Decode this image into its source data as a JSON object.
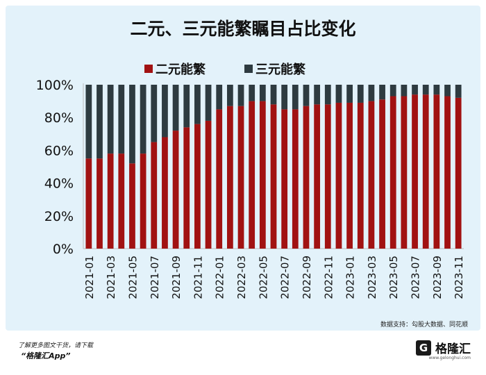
{
  "title": "二元、三元能繁瞩目占比变化",
  "legend": [
    {
      "label": "二元能繁",
      "color": "#a11212"
    },
    {
      "label": "三元能繁",
      "color": "#2e3b40"
    }
  ],
  "source": "数据支持：勾股大数据、同花顺",
  "footer": {
    "line1": "了解更多图文干货，请下载",
    "line2": "“格隆汇App”"
  },
  "brand": {
    "mark": "G",
    "name": "格隆汇",
    "url": "www.gelonghui.com"
  },
  "chart_data": {
    "type": "bar",
    "stacked": true,
    "title": "二元、三元能繁瞩目占比变化",
    "xlabel": "",
    "ylabel": "",
    "ylim": [
      0,
      100
    ],
    "yticks": [
      "0%",
      "20%",
      "40%",
      "60%",
      "80%",
      "100%"
    ],
    "legend_position": "top",
    "grid": false,
    "categories": [
      "2021-01",
      "2021-02",
      "2021-03",
      "2021-04",
      "2021-05",
      "2021-06",
      "2021-07",
      "2021-08",
      "2021-09",
      "2021-10",
      "2021-11",
      "2021-12",
      "2022-01",
      "2022-02",
      "2022-03",
      "2022-04",
      "2022-05",
      "2022-06",
      "2022-07",
      "2022-08",
      "2022-09",
      "2022-10",
      "2022-11",
      "2022-12",
      "2023-01",
      "2023-02",
      "2023-03",
      "2023-04",
      "2023-05",
      "2023-06",
      "2023-07",
      "2023-08",
      "2023-09",
      "2023-10",
      "2023-11"
    ],
    "xtick_labels": [
      "2021-01",
      "2021-03",
      "2021-05",
      "2021-07",
      "2021-09",
      "2021-11",
      "2022-01",
      "2022-03",
      "2022-05",
      "2022-07",
      "2022-09",
      "2022-11",
      "2023-01",
      "2023-03",
      "2023-05",
      "2023-07",
      "2023-09",
      "2023-11"
    ],
    "series": [
      {
        "name": "二元能繁",
        "color": "#a11212",
        "values": [
          55,
          55,
          58,
          58,
          52,
          58,
          65,
          68,
          72,
          74,
          76,
          78,
          85,
          87,
          87,
          90,
          90,
          88,
          85,
          85,
          87,
          88,
          88,
          89,
          89,
          89,
          90,
          91,
          93,
          93,
          94,
          94,
          94,
          93,
          92
        ]
      },
      {
        "name": "三元能繁",
        "color": "#2e3b40",
        "values": [
          45,
          45,
          42,
          42,
          48,
          42,
          35,
          32,
          28,
          26,
          24,
          22,
          15,
          13,
          13,
          10,
          10,
          12,
          15,
          15,
          13,
          12,
          12,
          11,
          11,
          11,
          10,
          9,
          7,
          7,
          6,
          6,
          6,
          7,
          8
        ]
      }
    ]
  }
}
